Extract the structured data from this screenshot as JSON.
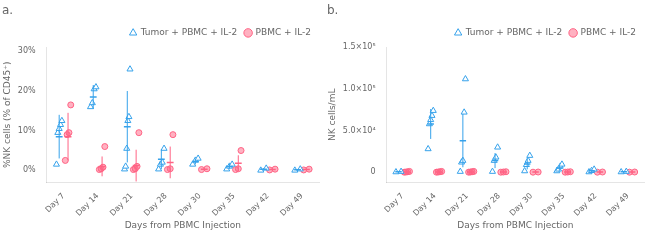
{
  "chart_data": [
    {
      "type": "scatter",
      "title": "a.",
      "xlabel": "Days from PBMC Injection",
      "ylabel": "%NK cells (% of CD45⁺)",
      "categories": [
        "Day 7",
        "Day 14",
        "Day 21",
        "Day 28",
        "Day 30",
        "Day 35",
        "Day 42",
        "Day 49"
      ],
      "ylim": [
        -3,
        31
      ],
      "yticks": [
        {
          "value": 0,
          "label": "0%"
        },
        {
          "value": 10,
          "label": "10%"
        },
        {
          "value": 20,
          "label": "20%"
        },
        {
          "value": 30,
          "label": "30%"
        }
      ],
      "grid": false,
      "legend": "upper right",
      "series": [
        {
          "name": "Tumor + PBMC + IL-2",
          "marker": "triangle",
          "values": [
            [
              1.5,
              9.5,
              10.5,
              11.5,
              12.5
            ],
            [
              16.0,
              17.0,
              20.5,
              21.0
            ],
            [
              0.3,
              1.0,
              5.5,
              12.5,
              13.5,
              25.5
            ],
            [
              0.3,
              1.5,
              2.0,
              5.5
            ],
            [
              1.5,
              2.5,
              3.0
            ],
            [
              0.3,
              1.0,
              1.5
            ],
            [
              0.0,
              0.5
            ],
            [
              0.0,
              0.3
            ]
          ],
          "means": [
            8.5,
            18.5,
            11.0,
            2.8,
            2.2,
            1.0,
            0.25,
            0.15
          ],
          "errors": [
            5.5,
            3.0,
            9.0,
            2.5,
            0.7,
            0.6,
            0.3,
            0.2
          ]
        },
        {
          "name": "PBMC + IL-2",
          "marker": "circle",
          "values": [
            [
              2.5,
              9.0,
              9.5,
              16.5
            ],
            [
              0.2,
              0.4,
              0.8,
              6.0
            ],
            [
              0.2,
              0.4,
              1.0,
              9.5
            ],
            [
              0.2,
              0.4,
              9.0
            ],
            [
              0.2,
              0.4
            ],
            [
              0.2,
              0.4,
              5.0
            ],
            [
              0.1,
              0.3
            ],
            [
              0.1,
              0.3
            ]
          ],
          "means": [
            8.5,
            1.0,
            1.2,
            2.0,
            0.3,
            1.8,
            0.2,
            0.2
          ],
          "errors": [
            6.0,
            2.5,
            4.0,
            4.0,
            0.15,
            2.0,
            0.1,
            0.1
          ]
        }
      ]
    },
    {
      "type": "scatter",
      "title": "b.",
      "xlabel": "Days from PBMC Injection",
      "ylabel": "NK cells/mL",
      "categories": [
        "Day 7",
        "Day 14",
        "Day 21",
        "Day 28",
        "Day 30",
        "Day 35",
        "Day 42",
        "Day 49"
      ],
      "ylim": [
        -12000,
        150000
      ],
      "yticks": [
        0,
        {
          "value": 50000,
          "label": "5.0×10⁴"
        },
        {
          "value": 100000,
          "label": "1.0×10⁵"
        },
        {
          "value": 150000,
          "label": "1.5×10⁵"
        }
      ],
      "grid": false,
      "legend": "upper right",
      "series": [
        {
          "name": "Tumor + PBMC + IL-2",
          "marker": "triangle",
          "values": [
            [
              300,
              800
            ],
            [
              28000,
              58000,
              63000,
              68000,
              74000
            ],
            [
              800,
              12000,
              14000,
              72000,
              112000
            ],
            [
              800,
              14000,
              18000,
              30000
            ],
            [
              1500,
              9000,
              14000,
              20000
            ],
            [
              1500,
              3500,
              7000,
              9500
            ],
            [
              300,
              1800,
              3500
            ],
            [
              300,
              800
            ]
          ],
          "means": [
            500,
            58000,
            38000,
            14000,
            10000,
            5000,
            1800,
            500
          ],
          "errors": [
            300,
            18000,
            32000,
            9000,
            6500,
            3200,
            1400,
            300
          ]
        },
        {
          "name": "PBMC + IL-2",
          "marker": "circle",
          "values": [
            [
              100,
              300,
              600,
              1000
            ],
            [
              100,
              300,
              600,
              1000
            ],
            [
              100,
              300,
              600,
              1000
            ],
            [
              100,
              300,
              600
            ],
            [
              100,
              300
            ],
            [
              100,
              300,
              600
            ],
            [
              100,
              300
            ],
            [
              100,
              300
            ]
          ],
          "means": [
            400,
            400,
            400,
            350,
            200,
            300,
            200,
            200
          ],
          "errors": [
            350,
            350,
            350,
            280,
            100,
            250,
            100,
            100
          ]
        }
      ]
    }
  ]
}
